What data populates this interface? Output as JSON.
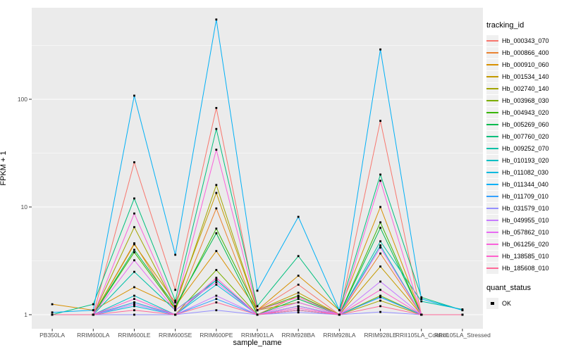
{
  "figure": {
    "y_axis_title": "FPKM + 1",
    "x_axis_title": "sample_name",
    "colors": {
      "panel_bg": "#EBEBEB",
      "grid_major": "#FFFFFF",
      "grid_minor": "#F7F7F7",
      "tick_text": "#4D4D4D",
      "point": "#000000"
    }
  },
  "chart_data": {
    "type": "line",
    "title": "",
    "xlabel": "sample_name",
    "ylabel": "FPKM + 1",
    "yscale": "log10",
    "y_tick_values": [
      1,
      10,
      100
    ],
    "y_minor_values": [
      3.162,
      31.62,
      316.2
    ],
    "ylim_log_range": [
      -0.07,
      2.85
    ],
    "grid": true,
    "legend_title": "tracking_id",
    "quant_legend": {
      "title": "quant_status",
      "value": "OK"
    },
    "x_categories": [
      "PB350LA",
      "RRIM600LA",
      "RRIM600LE",
      "RRIM600SE",
      "RRIM600PE",
      "RRIM901LA",
      "RRIM928BA",
      "RRIM928LA",
      "RRIM928LE",
      "RRII105LA_Control",
      "RRII105LA_Stressed"
    ],
    "series": [
      {
        "name": "Hb_000343_070",
        "color": "#F8766D",
        "values": [
          1.0,
          1.0,
          26,
          1.7,
          83,
          1.1,
          1.9,
          1.0,
          63,
          1.0,
          1.0
        ]
      },
      {
        "name": "Hb_000866_400",
        "color": "#EA8331",
        "values": [
          1.0,
          1.0,
          4.6,
          1.1,
          9.7,
          1.0,
          1.5,
          1.0,
          3.7,
          1.0,
          1.0
        ]
      },
      {
        "name": "Hb_000910_060",
        "color": "#D89000",
        "values": [
          1.25,
          1.1,
          1.8,
          1.2,
          3.9,
          1.1,
          2.3,
          1.1,
          10,
          1.0,
          1.0
        ]
      },
      {
        "name": "Hb_001534_140",
        "color": "#C49A00",
        "values": [
          1.0,
          1.0,
          4.5,
          1.3,
          13.5,
          1.1,
          1.6,
          1.0,
          2.8,
          1.0,
          1.0
        ]
      },
      {
        "name": "Hb_002740_140",
        "color": "#A3A500",
        "values": [
          1.0,
          1.0,
          6.5,
          1.2,
          16,
          1.1,
          1.3,
          1.0,
          1.35,
          1.0,
          1.0
        ]
      },
      {
        "name": "Hb_003968_030",
        "color": "#7CAE00",
        "values": [
          1.0,
          1.0,
          1.3,
          1.0,
          2.6,
          1.0,
          1.2,
          1.0,
          1.5,
          1.0,
          1.0
        ]
      },
      {
        "name": "Hb_004943_020",
        "color": "#39B600",
        "values": [
          1.0,
          1.0,
          3.8,
          1.15,
          6.3,
          1.1,
          1.5,
          1.0,
          7.2,
          1.0,
          1.0
        ]
      },
      {
        "name": "Hb_005269_060",
        "color": "#00BB4E",
        "values": [
          1.0,
          1.0,
          4.0,
          1.2,
          5.7,
          1.0,
          1.4,
          1.0,
          6.4,
          1.0,
          1.0
        ]
      },
      {
        "name": "Hb_007760_020",
        "color": "#00BF7D",
        "values": [
          1.0,
          1.25,
          12,
          1.35,
          53,
          1.2,
          3.5,
          1.1,
          20,
          1.45,
          1.1
        ]
      },
      {
        "name": "Hb_009252_070",
        "color": "#00C1A7",
        "values": [
          1.0,
          1.0,
          2.5,
          1.1,
          2.1,
          1.0,
          1.2,
          1.0,
          4.8,
          1.33,
          1.12
        ]
      },
      {
        "name": "Hb_010193_020",
        "color": "#00BFC4",
        "values": [
          1.0,
          1.0,
          1.5,
          1.0,
          2.1,
          1.0,
          1.1,
          1.0,
          4.4,
          1.0,
          1.0
        ]
      },
      {
        "name": "Hb_011082_030",
        "color": "#00BADE",
        "values": [
          1.0,
          1.0,
          1.2,
          1.0,
          1.9,
          1.0,
          1.1,
          1.0,
          1.46,
          1.0,
          1.0
        ]
      },
      {
        "name": "Hb_011344_040",
        "color": "#00B0F6",
        "values": [
          1.05,
          1.1,
          108,
          3.6,
          550,
          1.67,
          8.1,
          1.1,
          290,
          1.4,
          1.1
        ]
      },
      {
        "name": "Hb_011709_010",
        "color": "#35A2FF",
        "values": [
          1.0,
          1.0,
          1.3,
          1.0,
          1.4,
          1.0,
          1.1,
          1.0,
          1.45,
          1.0,
          1.0
        ]
      },
      {
        "name": "Hb_031579_010",
        "color": "#9590FF",
        "values": [
          1.0,
          1.0,
          1.0,
          1.0,
          1.1,
          1.0,
          1.05,
          1.0,
          1.06,
          1.0,
          1.0
        ]
      },
      {
        "name": "Hb_049955_010",
        "color": "#C77CFF",
        "values": [
          1.0,
          1.0,
          1.25,
          1.0,
          1.5,
          1.0,
          1.2,
          1.0,
          2.03,
          1.0,
          1.0
        ]
      },
      {
        "name": "Hb_057862_010",
        "color": "#E76BF3",
        "values": [
          1.0,
          1.0,
          3.2,
          1.1,
          2.0,
          1.0,
          1.3,
          1.0,
          4.2,
          1.0,
          1.0
        ]
      },
      {
        "name": "Hb_061256_020",
        "color": "#FA62DB",
        "values": [
          1.0,
          1.0,
          8.7,
          1.2,
          34,
          1.1,
          1.45,
          1.0,
          17.5,
          1.0,
          1.0
        ]
      },
      {
        "name": "Hb_138585_010",
        "color": "#FF61CC",
        "values": [
          1.0,
          1.0,
          1.4,
          1.0,
          2.2,
          1.0,
          1.15,
          1.0,
          1.7,
          1.0,
          1.0
        ]
      },
      {
        "name": "Hb_185608_010",
        "color": "#FF6A98",
        "values": [
          1.0,
          1.0,
          1.1,
          1.0,
          1.3,
          1.0,
          1.1,
          1.0,
          1.2,
          1.0,
          1.0
        ]
      }
    ]
  }
}
